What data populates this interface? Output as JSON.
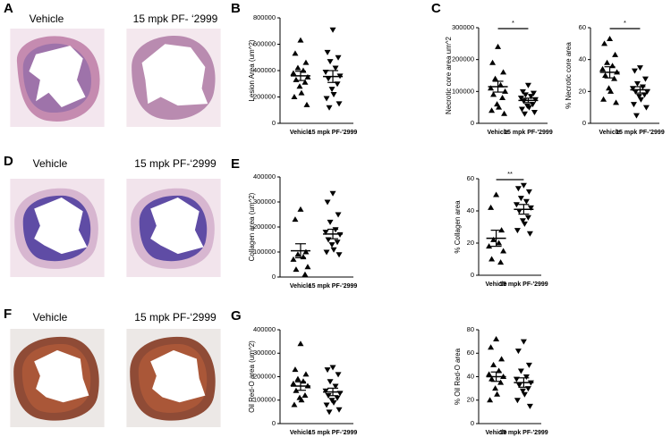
{
  "panel_labels": [
    "A",
    "B",
    "C",
    "D",
    "E",
    "F",
    "G"
  ],
  "image_labels": [
    [
      "Vehicle",
      "15 mpk PF- ‘2999"
    ],
    [
      "Vehicle",
      "15 mpk PF-‘2999"
    ],
    [
      "Vehicle",
      "15 mpk PF-‘2999"
    ]
  ],
  "chart_data": [
    {
      "type": "dot",
      "ylabel": "Lesion Area (um^2)",
      "categories": [
        "Vehicle",
        "15 mpk PF-'2999"
      ],
      "points": [
        [
          630000,
          530000,
          460000,
          420000,
          400000,
          380000,
          350000,
          330000,
          310000,
          280000,
          230000,
          200000,
          140000
        ],
        [
          710000,
          540000,
          500000,
          470000,
          420000,
          390000,
          360000,
          340000,
          300000,
          260000,
          220000,
          190000,
          150000,
          120000
        ]
      ],
      "mean": [
        360000,
        355000
      ],
      "sem": [
        35000,
        45000
      ],
      "ylim": [
        0,
        800000
      ],
      "yticks": [
        0,
        200000,
        400000,
        600000,
        800000
      ]
    },
    {
      "type": "dot",
      "ylabel": "Necrotic core area um^2",
      "categories": [
        "Vehicle",
        "15 mpk PF-'2999"
      ],
      "points": [
        [
          240000,
          190000,
          160000,
          140000,
          120000,
          110000,
          100000,
          90000,
          80000,
          60000,
          50000,
          40000,
          30000
        ],
        [
          120000,
          100000,
          95000,
          90000,
          85000,
          80000,
          75000,
          70000,
          60000,
          55000,
          50000,
          45000,
          35000,
          30000
        ]
      ],
      "mean": [
        115000,
        72000
      ],
      "sem": [
        17000,
        7000
      ],
      "significance": "*",
      "ylim": [
        0,
        300000
      ],
      "yticks": [
        0,
        100000,
        200000,
        300000
      ]
    },
    {
      "type": "dot",
      "ylabel": "% Necrotic core area",
      "categories": [
        "Vehicle",
        "15 mpk PF-'2999"
      ],
      "points": [
        [
          53,
          50,
          43,
          38,
          36,
          34,
          32,
          30,
          28,
          22,
          20,
          15,
          13
        ],
        [
          35,
          33,
          28,
          25,
          23,
          22,
          20,
          20,
          18,
          17,
          15,
          12,
          10,
          5
        ]
      ],
      "mean": [
        32,
        21
      ],
      "sem": [
        3.5,
        2
      ],
      "significance": "*",
      "ylim": [
        0,
        60
      ],
      "yticks": [
        0,
        20,
        40,
        60
      ]
    },
    {
      "type": "dot",
      "ylabel": "Collagen area  (um^2)",
      "categories": [
        "Vehicle",
        "15 mpk PF-'2999"
      ],
      "points": [
        [
          270000,
          230000,
          100000,
          90000,
          80000,
          70000,
          40000,
          30000,
          10000
        ],
        [
          335000,
          300000,
          250000,
          220000,
          190000,
          180000,
          170000,
          150000,
          140000,
          130000,
          110000,
          100000,
          90000
        ]
      ],
      "mean": [
        105000,
        172000
      ],
      "sem": [
        28000,
        19000
      ],
      "ylim": [
        0,
        400000
      ],
      "yticks": [
        0,
        100000,
        200000,
        300000,
        400000
      ]
    },
    {
      "type": "dot",
      "ylabel": "% Collagen area",
      "categories": [
        "Vehicle",
        "15 mpk PF-'2999"
      ],
      "points": [
        [
          50,
          42,
          28,
          22,
          20,
          18,
          15,
          10,
          8
        ],
        [
          56,
          54,
          52,
          48,
          46,
          44,
          42,
          40,
          36,
          34,
          32,
          28,
          26
        ]
      ],
      "mean": [
        23,
        41
      ],
      "sem": [
        5,
        3
      ],
      "significance": "**",
      "ylim": [
        0,
        60
      ],
      "yticks": [
        0,
        20,
        40,
        60
      ]
    },
    {
      "type": "dot",
      "ylabel": "Oil Red-O area  (um^2)",
      "categories": [
        "Vehicle",
        "15 mpk PF-'2999"
      ],
      "points": [
        [
          340000,
          230000,
          210000,
          190000,
          180000,
          170000,
          160000,
          140000,
          120000,
          110000,
          100000,
          80000
        ],
        [
          240000,
          230000,
          210000,
          180000,
          160000,
          140000,
          130000,
          120000,
          110000,
          100000,
          90000,
          80000,
          60000,
          50000
        ]
      ],
      "mean": [
        160000,
        135000
      ],
      "sem": [
        18000,
        16000
      ],
      "ylim": [
        0,
        400000
      ],
      "yticks": [
        0,
        100000,
        200000,
        300000,
        400000
      ]
    },
    {
      "type": "dot",
      "ylabel": "% Oil Red-O area",
      "categories": [
        "Vehicle",
        "15 mpk PF-'2999"
      ],
      "points": [
        [
          72,
          65,
          55,
          50,
          45,
          42,
          40,
          38,
          35,
          30,
          25,
          20
        ],
        [
          70,
          62,
          50,
          45,
          40,
          38,
          35,
          33,
          30,
          28,
          25,
          20,
          15
        ]
      ],
      "mean": [
        40,
        35
      ],
      "sem": [
        4,
        4
      ],
      "ylim": [
        0,
        80
      ],
      "yticks": [
        0,
        20,
        40,
        60,
        80
      ]
    }
  ]
}
